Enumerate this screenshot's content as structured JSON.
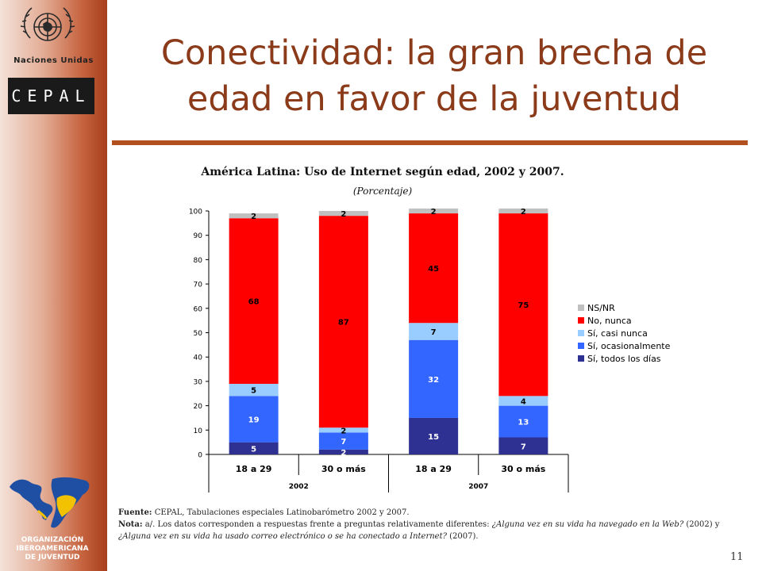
{
  "slide": {
    "title_line1": "Conectividad: la gran brecha de",
    "title_line2": "edad en favor de la juventud",
    "page_number": "11"
  },
  "logos": {
    "un_text": "Naciones Unidas",
    "cepal_text": "CEPAL",
    "oij_line1": "ORGANIZACIÓN",
    "oij_line2": "IBEROAMERICANA",
    "oij_line3": "DE JUVENTUD"
  },
  "notes": {
    "fuente_label": "Fuente:",
    "fuente_text": "CEPAL, Tabulaciones especiales Latinobarómetro 2002 y 2007.",
    "nota_label": "Nota:",
    "nota_text1": "a/. Los datos corresponden a respuestas frente a preguntas relativamente diferentes:",
    "nota_q1": "¿Alguna vez en su vida ha navegado en la Web?",
    "nota_year1": "(2002) y",
    "nota_q2": "¿Alguna vez en su vida ha usado correo electrónico o se ha conectado a Internet?",
    "nota_year2": "(2007)."
  },
  "chart_data": {
    "type": "bar",
    "stacked": true,
    "title": "América Latina: Uso de Internet según edad, 2002 y 2007.",
    "subtitle": "(Porcentaje)",
    "categories": [
      "18 a 29",
      "30 o más",
      "18 a 29",
      "30 o más"
    ],
    "groups": [
      {
        "label": "2002",
        "categories": [
          0,
          1
        ]
      },
      {
        "label": "2007",
        "categories": [
          2,
          3
        ]
      }
    ],
    "ylim": [
      0,
      100
    ],
    "yticks": [
      0,
      10,
      20,
      30,
      40,
      50,
      60,
      70,
      80,
      90,
      100
    ],
    "legend_position": "right",
    "series": [
      {
        "name": "Sí, todos los días",
        "color": "#2e3192",
        "values": [
          5,
          2,
          15,
          7
        ],
        "labels": [
          "5",
          "2",
          "15",
          "7"
        ]
      },
      {
        "name": "Sí, ocasionalmente",
        "color": "#3366ff",
        "values": [
          19,
          7,
          32,
          13
        ],
        "labels": [
          "19",
          "7",
          "32",
          "13"
        ]
      },
      {
        "name": "Sí, casi nunca",
        "color": "#99ccff",
        "values": [
          5,
          2,
          7,
          4
        ],
        "labels": [
          "5",
          "2",
          "7",
          "4"
        ]
      },
      {
        "name": "No, nunca",
        "color": "#ff0000",
        "values": [
          68,
          87,
          45,
          75
        ],
        "labels": [
          "68",
          "87",
          "45",
          "75"
        ]
      },
      {
        "name": "NS/NR",
        "color": "#c0c0c0",
        "values": [
          2,
          2,
          2,
          2
        ],
        "labels": [
          "2",
          "2",
          "2",
          "2"
        ]
      }
    ]
  }
}
